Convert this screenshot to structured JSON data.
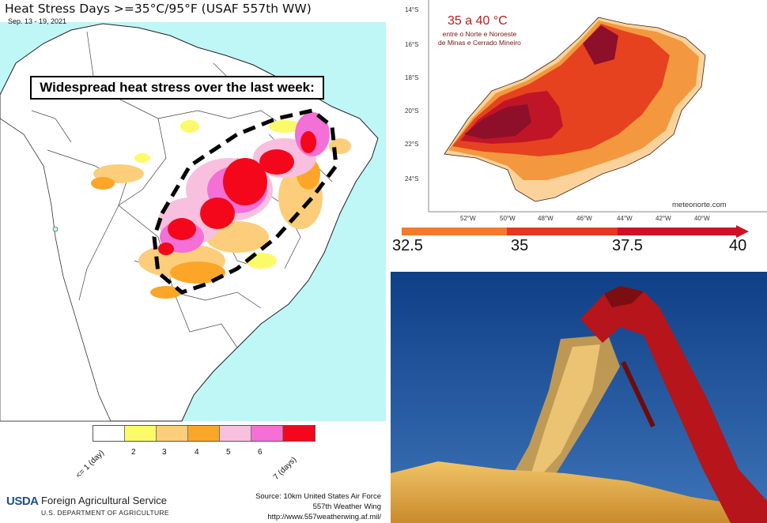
{
  "left_map": {
    "title": "Heat Stress Days >=35°C/95°F (USAF 557th WW)",
    "date_range": "Sep. 13 - 19, 2021",
    "callout": "Widespread heat stress over the last week:",
    "legend": {
      "swatches": [
        {
          "label": "<= 1 (day)",
          "color": "#ffffff"
        },
        {
          "label": "2",
          "color": "#fbfb6a"
        },
        {
          "label": "3",
          "color": "#fccd7a"
        },
        {
          "label": "4",
          "color": "#fba628"
        },
        {
          "label": "5",
          "color": "#f8c0de"
        },
        {
          "label": "6",
          "color": "#f46fd6"
        },
        {
          "label": "7 (days)",
          "color": "#f4071a"
        }
      ]
    },
    "footer": {
      "logo_text": "USDA",
      "agency": "Foreign Agricultural Service",
      "department": "U.S. DEPARTMENT OF AGRICULTURE",
      "source_line1": "Source: 10km United States Air Force",
      "source_line2": "557th Weather Wing",
      "source_line3": "http://www.557weatherwing.af.mil/"
    },
    "colors": {
      "ocean": "#bff6f6",
      "land": "#ffffff",
      "outline": "#000000"
    }
  },
  "right_top_map": {
    "heading": "35 a 40 °C",
    "subtitle_line1": "entre o Norte e Noroeste",
    "subtitle_line2": "de Minas e Cerrado Mineiro",
    "credit": "meteonorte.com",
    "lat_labels": [
      "14°S",
      "16°S",
      "18°S",
      "20°S",
      "22°S",
      "24°S"
    ],
    "lon_labels": [
      "52°W",
      "50°W",
      "48°W",
      "46°W",
      "44°W",
      "42°W",
      "40°W"
    ],
    "colorbar": {
      "ticks": [
        "32.5",
        "35",
        "37.5",
        "40"
      ],
      "colors": [
        "#f47a2a",
        "#e8371f",
        "#cf1025"
      ]
    }
  },
  "right_bottom_photo": {
    "colors": {
      "sky": "#1d4f94",
      "machine": "#b5151b",
      "grain": "#e5b24b"
    }
  }
}
